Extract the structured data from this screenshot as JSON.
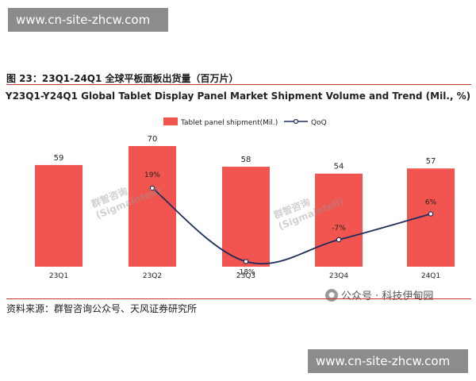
{
  "banner_top": "www.cn-site-zhcw.com",
  "banner_bottom": "www.cn-site-zhcw.com",
  "figure_title": "图 23：23Q1-24Q1 全球平板面板出货量（百万片）",
  "source": "资料来源：群智咨询公众号、天风证券研究所",
  "wechat_label": "公众号 · 科技伊甸园",
  "watermark": {
    "line1": "群智咨询",
    "line2": "(Sigmaintell)"
  },
  "colors": {
    "bar": "#f2554f",
    "line": "#1f2d5a",
    "rule": "#c0392b"
  },
  "chart_data": {
    "type": "bar",
    "title": "Y23Q1-Y24Q1 Global Tablet Display Panel Market Shipment Volume and Trend (Mil., %)",
    "categories": [
      "23Q1",
      "23Q2",
      "23Q3",
      "23Q4",
      "24Q1"
    ],
    "series": [
      {
        "name": "Tablet panel shipment(Mil.)",
        "type": "bar",
        "values": [
          59,
          70,
          58,
          54,
          57
        ],
        "labels": [
          "59",
          "70",
          "58",
          "54",
          "57"
        ]
      },
      {
        "name": "QoQ",
        "type": "line",
        "x": [
          "23Q2",
          "23Q3",
          "23Q4",
          "24Q1"
        ],
        "values": [
          19,
          -18,
          -7,
          6
        ],
        "labels": [
          "19%",
          "-18%",
          "-7%",
          "6%"
        ]
      }
    ],
    "xlabel": "",
    "ylabel": "",
    "legend": "top-center",
    "grid": false
  }
}
